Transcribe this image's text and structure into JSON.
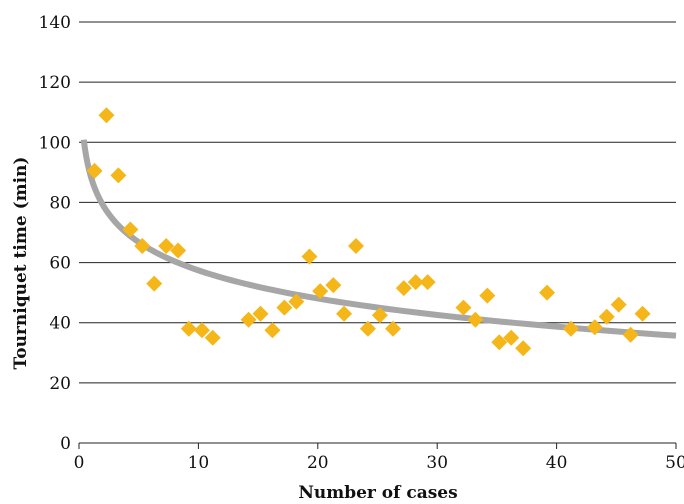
{
  "chart_data": {
    "type": "scatter",
    "xlabel": "Number of cases",
    "ylabel": "Tourniquet time (min)",
    "xlim": [
      0,
      50
    ],
    "ylim": [
      0,
      140
    ],
    "x_ticks": [
      0,
      10,
      20,
      30,
      40,
      50
    ],
    "y_ticks": [
      0,
      20,
      40,
      60,
      80,
      100,
      120,
      140
    ],
    "grid": "horizontal",
    "legend": "none",
    "colors": {
      "points": "#F5B619",
      "trend": "#A6A6A6"
    },
    "series": [
      {
        "type": "scatter",
        "points": [
          {
            "x": 1.3,
            "y": 90.5
          },
          {
            "x": 2.3,
            "y": 109
          },
          {
            "x": 3.3,
            "y": 89
          },
          {
            "x": 4.3,
            "y": 71
          },
          {
            "x": 5.3,
            "y": 65.5
          },
          {
            "x": 6.3,
            "y": 53
          },
          {
            "x": 7.3,
            "y": 65.5
          },
          {
            "x": 8.3,
            "y": 64
          },
          {
            "x": 9.2,
            "y": 38
          },
          {
            "x": 10.3,
            "y": 37.5
          },
          {
            "x": 11.2,
            "y": 35
          },
          {
            "x": 14.2,
            "y": 41
          },
          {
            "x": 15.2,
            "y": 43
          },
          {
            "x": 16.2,
            "y": 37.5
          },
          {
            "x": 17.2,
            "y": 45
          },
          {
            "x": 18.2,
            "y": 47
          },
          {
            "x": 19.3,
            "y": 62
          },
          {
            "x": 20.2,
            "y": 50.5
          },
          {
            "x": 21.3,
            "y": 52.5
          },
          {
            "x": 22.2,
            "y": 43
          },
          {
            "x": 23.2,
            "y": 65.5
          },
          {
            "x": 24.2,
            "y": 38
          },
          {
            "x": 25.2,
            "y": 42.5
          },
          {
            "x": 26.3,
            "y": 38
          },
          {
            "x": 27.2,
            "y": 51.5
          },
          {
            "x": 28.2,
            "y": 53.5
          },
          {
            "x": 29.2,
            "y": 53.5
          },
          {
            "x": 32.2,
            "y": 45
          },
          {
            "x": 33.2,
            "y": 41
          },
          {
            "x": 34.2,
            "y": 49
          },
          {
            "x": 35.2,
            "y": 33.5
          },
          {
            "x": 36.2,
            "y": 35
          },
          {
            "x": 37.2,
            "y": 31.5
          },
          {
            "x": 39.2,
            "y": 50
          },
          {
            "x": 41.2,
            "y": 38
          },
          {
            "x": 43.2,
            "y": 38.5
          },
          {
            "x": 44.2,
            "y": 42
          },
          {
            "x": 45.2,
            "y": 46
          },
          {
            "x": 46.2,
            "y": 36
          },
          {
            "x": 47.2,
            "y": 43
          }
        ]
      },
      {
        "type": "line",
        "model": "logarithmic",
        "x_range": [
          0.4,
          50
        ],
        "coefficients": {
          "a": 88.5,
          "b": -13.5
        }
      }
    ]
  }
}
